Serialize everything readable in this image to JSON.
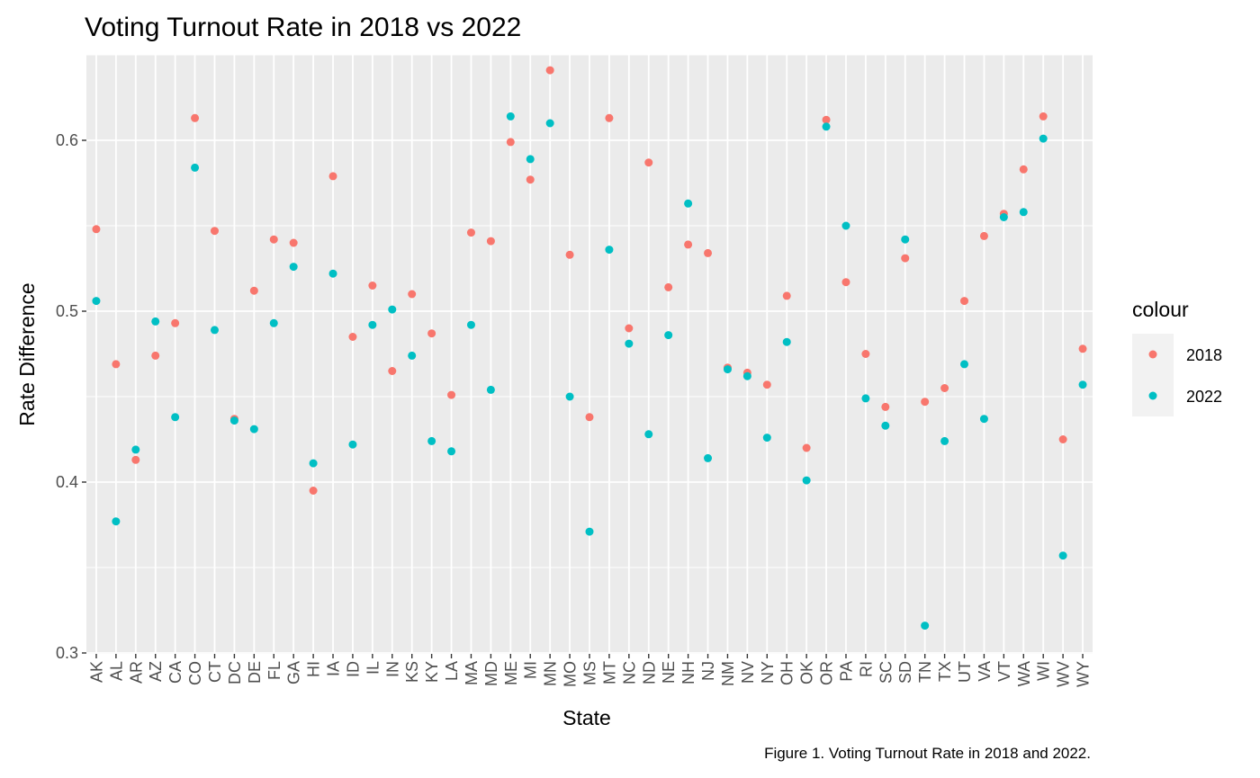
{
  "chart_data": {
    "type": "scatter",
    "title": "Voting Turnout Rate in 2018 vs 2022",
    "xlabel": "State",
    "ylabel": "Rate Difference",
    "caption": "Figure 1. Voting Turnout Rate in 2018 and 2022.",
    "categories": [
      "AK",
      "AL",
      "AR",
      "AZ",
      "CA",
      "CO",
      "CT",
      "DC",
      "DE",
      "FL",
      "GA",
      "HI",
      "IA",
      "ID",
      "IL",
      "IN",
      "KS",
      "KY",
      "LA",
      "MA",
      "MD",
      "ME",
      "MI",
      "MN",
      "MO",
      "MS",
      "MT",
      "NC",
      "ND",
      "NE",
      "NH",
      "NJ",
      "NM",
      "NV",
      "NY",
      "OH",
      "OK",
      "OR",
      "PA",
      "RI",
      "SC",
      "SD",
      "TN",
      "TX",
      "UT",
      "VA",
      "VT",
      "WA",
      "WI",
      "WV",
      "WY"
    ],
    "ylim": [
      0.3,
      0.65
    ],
    "y_ticks": [
      0.3,
      0.4,
      0.5,
      0.6
    ],
    "y_tick_labels": [
      "0.3",
      "0.4",
      "0.5",
      "0.6"
    ],
    "grid": true,
    "legend": {
      "title": "colour",
      "position": "right"
    },
    "series": [
      {
        "name": "2018",
        "color": "#F8766D",
        "values": [
          0.548,
          0.469,
          0.413,
          0.474,
          0.493,
          0.613,
          0.547,
          0.437,
          0.512,
          0.542,
          0.54,
          0.395,
          0.579,
          0.485,
          0.515,
          0.465,
          0.51,
          0.487,
          0.451,
          0.546,
          0.541,
          0.599,
          0.577,
          0.641,
          0.533,
          0.438,
          0.613,
          0.49,
          0.587,
          0.514,
          0.539,
          0.534,
          0.467,
          0.464,
          0.457,
          0.509,
          0.42,
          0.612,
          0.517,
          0.475,
          0.444,
          0.531,
          0.447,
          0.455,
          0.506,
          0.544,
          0.557,
          0.583,
          0.614,
          0.425,
          0.478
        ]
      },
      {
        "name": "2022",
        "color": "#00BFC4",
        "values": [
          0.506,
          0.377,
          0.419,
          0.494,
          0.438,
          0.584,
          0.489,
          0.436,
          0.431,
          0.493,
          0.526,
          0.411,
          0.522,
          0.422,
          0.492,
          0.501,
          0.474,
          0.424,
          0.418,
          0.492,
          0.454,
          0.614,
          0.589,
          0.61,
          0.45,
          0.371,
          0.536,
          0.481,
          0.428,
          0.486,
          0.563,
          0.414,
          0.466,
          0.462,
          0.426,
          0.482,
          0.401,
          0.608,
          0.55,
          0.449,
          0.433,
          0.542,
          0.316,
          0.424,
          0.469,
          0.437,
          0.555,
          0.558,
          0.601,
          0.357,
          0.457
        ]
      }
    ]
  }
}
